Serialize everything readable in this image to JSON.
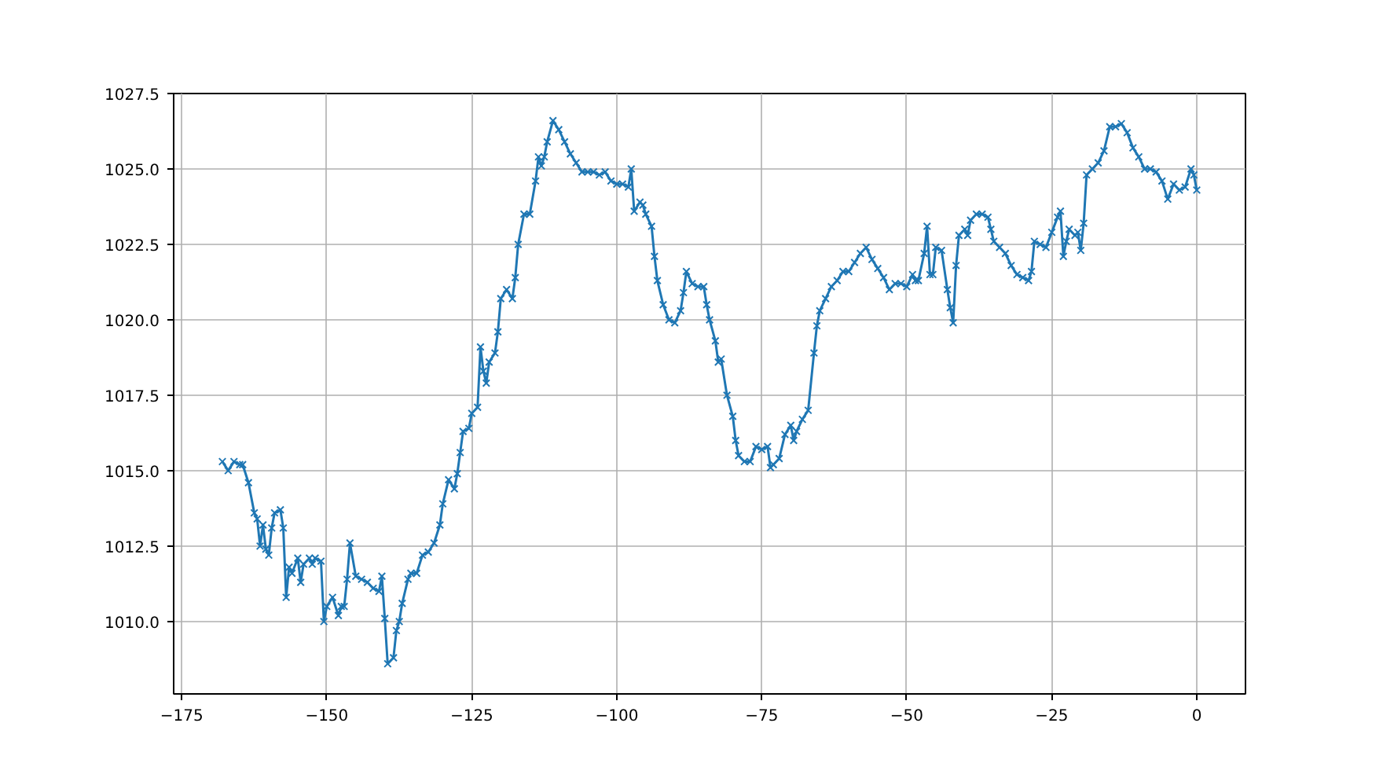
{
  "chart_data": {
    "type": "line",
    "marker": "cross",
    "line_style": "solid",
    "grid": true,
    "xlim": [
      -176.4,
      8.4
    ],
    "ylim": [
      1007.6,
      1027.5
    ],
    "xticks": [
      {
        "value": -175,
        "label": "−175"
      },
      {
        "value": -150,
        "label": "−150"
      },
      {
        "value": -125,
        "label": "−125"
      },
      {
        "value": -100,
        "label": "−100"
      },
      {
        "value": -75,
        "label": "−75"
      },
      {
        "value": -50,
        "label": "−50"
      },
      {
        "value": -25,
        "label": "−25"
      },
      0
    ],
    "yticks": [
      {
        "value": 1010,
        "label": "1010.0"
      },
      {
        "value": 1012.5,
        "label": "1012.5"
      },
      {
        "value": 1015,
        "label": "1015.0"
      },
      {
        "value": 1017.5,
        "label": "1017.5"
      },
      {
        "value": 1020,
        "label": "1020.0"
      },
      {
        "value": 1022.5,
        "label": "1022.5"
      },
      {
        "value": 1025,
        "label": "1025.0"
      },
      {
        "value": 1027.5,
        "label": "1027.5"
      }
    ],
    "series": [
      {
        "color": "#1f77b4",
        "x": [
          -168,
          -167,
          -166,
          -165,
          -164.5,
          -163.5,
          -162.5,
          -162,
          -161.5,
          -161,
          -160.5,
          -160,
          -159.5,
          -159,
          -158,
          -157.5,
          -157,
          -156.5,
          -156,
          -155,
          -154.5,
          -154,
          -153,
          -152.5,
          -152,
          -151,
          -150.5,
          -150,
          -149,
          -148,
          -147.5,
          -147,
          -146.5,
          -146,
          -145,
          -144,
          -143,
          -142,
          -141,
          -140.5,
          -140,
          -139.5,
          -138.5,
          -138,
          -137.5,
          -137,
          -136,
          -135.5,
          -134.5,
          -133.5,
          -132.5,
          -131.5,
          -130.5,
          -130,
          -129,
          -128,
          -127.5,
          -127,
          -126.5,
          -125.5,
          -125,
          -124,
          -123.5,
          -123,
          -122.5,
          -122,
          -121,
          -120.5,
          -120,
          -119,
          -118,
          -117.5,
          -117,
          -116,
          -115,
          -114,
          -113.5,
          -113,
          -112.5,
          -112,
          -111,
          -110,
          -109,
          -108,
          -107,
          -106,
          -105,
          -104,
          -103,
          -102,
          -101,
          -100,
          -99,
          -98,
          -97.5,
          -97,
          -96,
          -95.5,
          -95,
          -94,
          -93.5,
          -93,
          -92,
          -91,
          -90,
          -89,
          -88.5,
          -88,
          -87,
          -86,
          -85,
          -84.5,
          -84,
          -83,
          -82.5,
          -82,
          -81,
          -80,
          -79.5,
          -79,
          -78,
          -77,
          -76,
          -75,
          -74,
          -73.5,
          -73,
          -72,
          -71,
          -70,
          -69.5,
          -69,
          -68,
          -67,
          -66,
          -65.5,
          -65,
          -64,
          -63,
          -62,
          -61,
          -60,
          -59,
          -58,
          -57,
          -56,
          -55,
          -54,
          -53,
          -52,
          -51,
          -50,
          -49,
          -48.5,
          -48,
          -47,
          -46.5,
          -46,
          -45.5,
          -45,
          -44,
          -43,
          -42.5,
          -42,
          -41.5,
          -41,
          -40,
          -39.5,
          -39,
          -38,
          -37,
          -36,
          -35.5,
          -35,
          -34,
          -33,
          -32,
          -31,
          -30,
          -29,
          -28.5,
          -28,
          -27,
          -26,
          -25,
          -24,
          -23.5,
          -23,
          -22.5,
          -22,
          -21,
          -20.5,
          -20,
          -19.5,
          -19,
          -18,
          -17,
          -16,
          -15,
          -14,
          -13,
          -12,
          -11,
          -10,
          -9,
          -8,
          -7,
          -6,
          -5,
          -4,
          -3,
          -2,
          -1,
          -0.5,
          0
        ],
        "values": [
          1015.3,
          1015.0,
          1015.3,
          1015.2,
          1015.2,
          1014.6,
          1013.6,
          1013.4,
          1012.5,
          1013.2,
          1012.4,
          1012.2,
          1013.1,
          1013.6,
          1013.7,
          1013.1,
          1010.8,
          1011.8,
          1011.6,
          1012.1,
          1011.3,
          1011.9,
          1012.1,
          1011.9,
          1012.1,
          1012.0,
          1010.0,
          1010.5,
          1010.8,
          1010.2,
          1010.5,
          1010.5,
          1011.4,
          1012.6,
          1011.5,
          1011.4,
          1011.3,
          1011.1,
          1011.0,
          1011.5,
          1010.1,
          1008.6,
          1008.8,
          1009.7,
          1010.0,
          1010.6,
          1011.4,
          1011.6,
          1011.6,
          1012.2,
          1012.3,
          1012.6,
          1013.2,
          1013.9,
          1014.7,
          1014.4,
          1014.9,
          1015.6,
          1016.3,
          1016.4,
          1016.9,
          1017.1,
          1019.1,
          1018.3,
          1017.9,
          1018.6,
          1018.9,
          1019.6,
          1020.7,
          1021.0,
          1020.7,
          1021.4,
          1022.5,
          1023.5,
          1023.5,
          1024.6,
          1025.4,
          1025.1,
          1025.4,
          1025.9,
          1026.6,
          1026.3,
          1025.9,
          1025.5,
          1025.2,
          1024.9,
          1024.9,
          1024.9,
          1024.8,
          1024.9,
          1024.6,
          1024.5,
          1024.5,
          1024.4,
          1025.0,
          1023.6,
          1023.9,
          1023.8,
          1023.5,
          1023.1,
          1022.1,
          1021.3,
          1020.5,
          1020.0,
          1019.9,
          1020.3,
          1020.9,
          1021.6,
          1021.2,
          1021.1,
          1021.1,
          1020.5,
          1020.0,
          1019.3,
          1018.6,
          1018.7,
          1017.5,
          1016.8,
          1016.0,
          1015.5,
          1015.3,
          1015.3,
          1015.8,
          1015.7,
          1015.8,
          1015.1,
          1015.2,
          1015.4,
          1016.2,
          1016.5,
          1016.0,
          1016.3,
          1016.7,
          1017.0,
          1018.9,
          1019.8,
          1020.3,
          1020.7,
          1021.1,
          1021.3,
          1021.6,
          1021.6,
          1021.9,
          1022.2,
          1022.4,
          1022.0,
          1021.7,
          1021.4,
          1021.0,
          1021.2,
          1021.2,
          1021.1,
          1021.5,
          1021.3,
          1021.3,
          1022.2,
          1023.1,
          1021.5,
          1021.5,
          1022.4,
          1022.3,
          1021.0,
          1020.4,
          1019.9,
          1021.8,
          1022.8,
          1023.0,
          1022.8,
          1023.3,
          1023.5,
          1023.5,
          1023.4,
          1023.0,
          1022.6,
          1022.4,
          1022.2,
          1021.8,
          1021.5,
          1021.4,
          1021.3,
          1021.6,
          1022.6,
          1022.5,
          1022.4,
          1022.9,
          1023.4,
          1023.6,
          1022.1,
          1022.6,
          1023.0,
          1022.8,
          1022.9,
          1022.3,
          1023.2,
          1024.8,
          1025.0,
          1025.2,
          1025.6,
          1026.4,
          1026.4,
          1026.5,
          1026.2,
          1025.7,
          1025.4,
          1025.0,
          1025.0,
          1024.9,
          1024.6,
          1024.0,
          1024.5,
          1024.3,
          1024.4,
          1025.0,
          1024.8,
          1024.3
        ]
      }
    ]
  }
}
